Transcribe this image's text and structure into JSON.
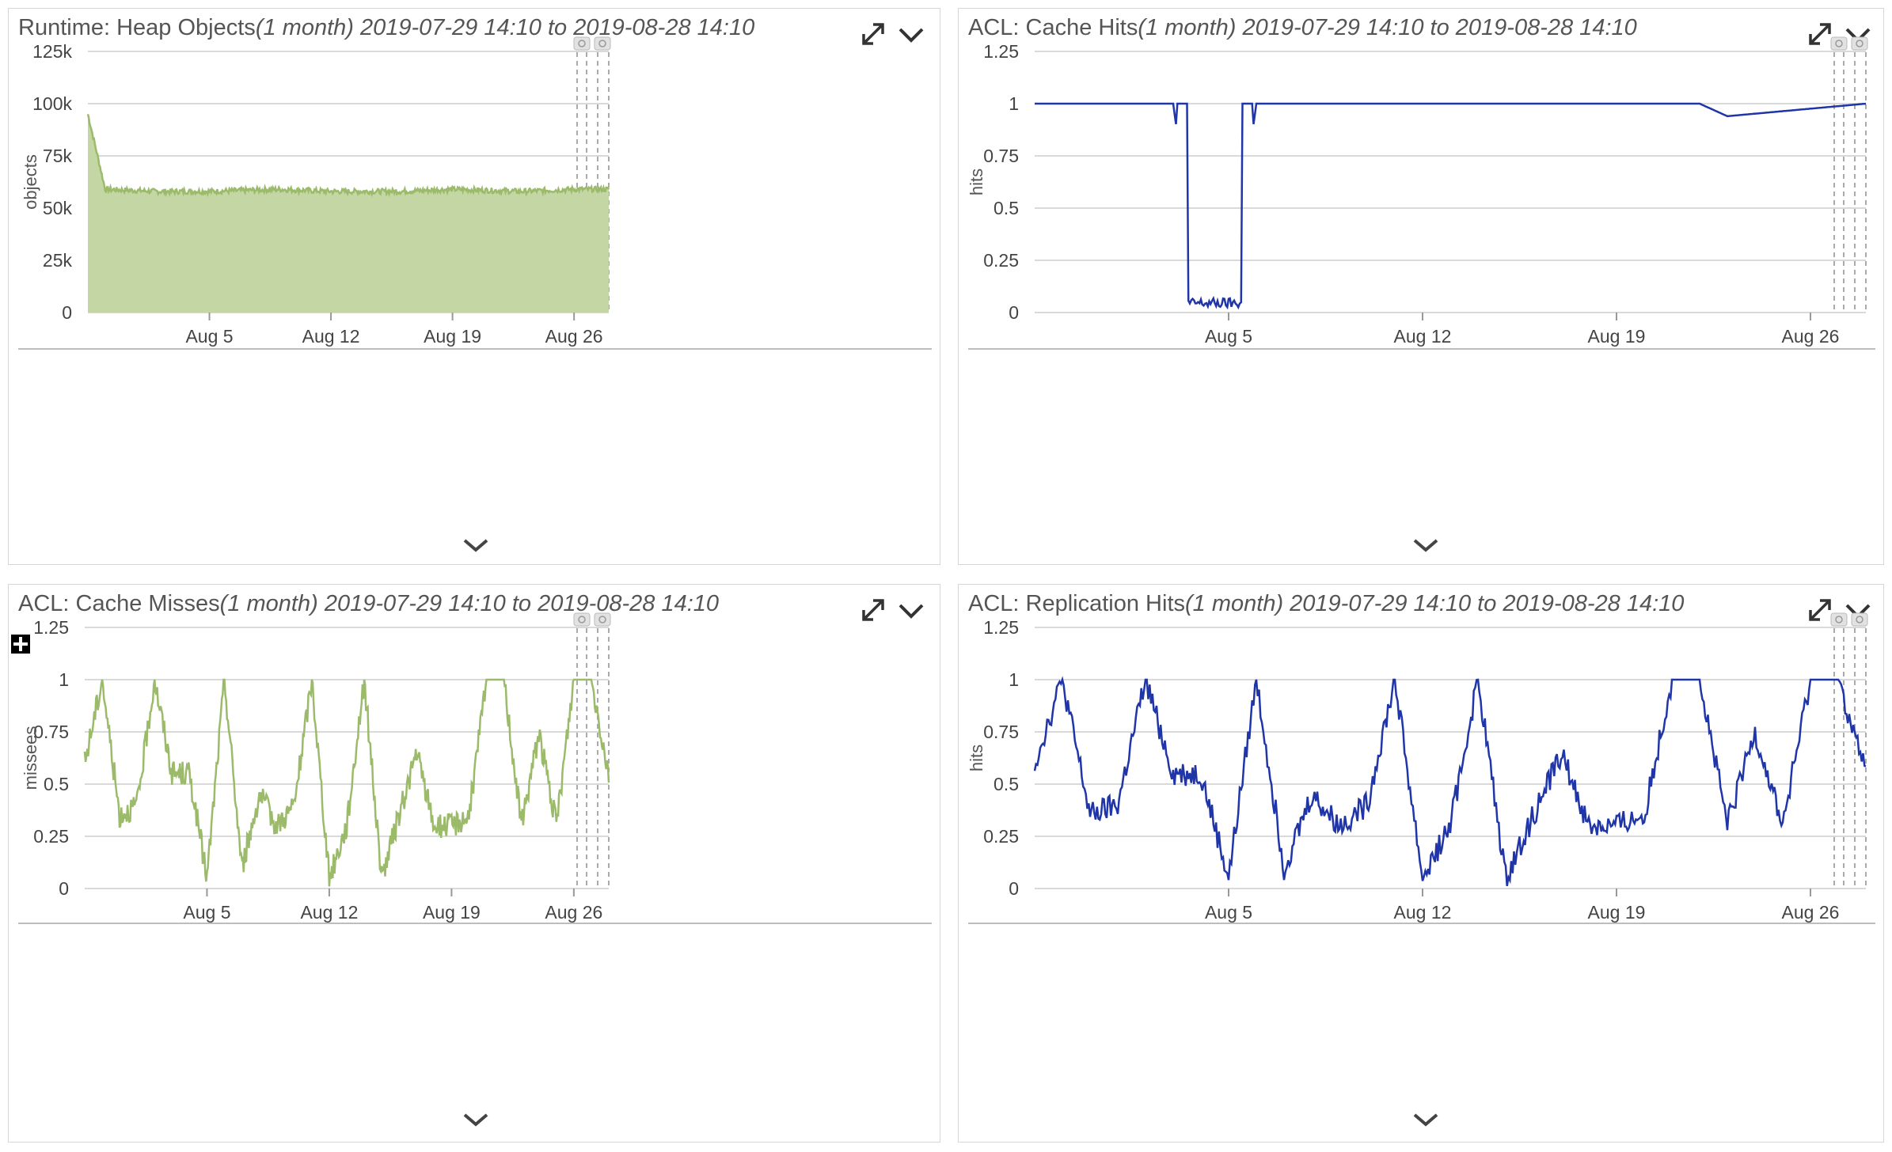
{
  "colors": {
    "green_line": "#9bbb6b",
    "green_fill": "#c3d6a4",
    "blue_line": "#1f35a8",
    "grid": "#d9d9d9",
    "axis_text": "#444444"
  },
  "icons": {
    "expand": "expand-icon",
    "menu": "chevron-down-icon",
    "collapse": "chevron-down-icon",
    "move": "move-icon",
    "annotations": "comment-icon"
  },
  "x_ticks": [
    "Aug 5",
    "Aug 12",
    "Aug 19",
    "Aug 26"
  ],
  "panels": [
    {
      "title": "Runtime: Heap Objects",
      "range": "(1 month) 2019-07-29 14:10 to 2019-08-28 14:10"
    },
    {
      "title": "ACL: Cache Hits",
      "range": "(1 month) 2019-07-29 14:10 to 2019-08-28 14:10"
    },
    {
      "title": "ACL: Cache Misses",
      "range": "(1 month) 2019-07-29 14:10 to 2019-08-28 14:10"
    },
    {
      "title": "ACL: Replication Hits",
      "range": "(1 month) 2019-07-29 14:10 to 2019-08-28 14:10"
    }
  ],
  "chart_data": [
    {
      "type": "area",
      "title": "Runtime: Heap Objects",
      "ylabel": "objects",
      "ylim": [
        0,
        125000
      ],
      "y_ticks": [
        "0",
        "25k",
        "50k",
        "75k",
        "100k",
        "125k"
      ],
      "x_ticks": [
        "Aug 5",
        "Aug 12",
        "Aug 19",
        "Aug 26"
      ],
      "x_range": [
        "2019-07-29",
        "2019-08-28"
      ],
      "series": [
        {
          "x": [
            "2019-07-29",
            "2019-07-30",
            "2019-08-02",
            "2019-08-05",
            "2019-08-09",
            "2019-08-12",
            "2019-08-16",
            "2019-08-19",
            "2019-08-23",
            "2019-08-26",
            "2019-08-28"
          ],
          "values": [
            95000,
            59000,
            58000,
            58000,
            59000,
            58000,
            58000,
            59000,
            58000,
            59000,
            59000
          ]
        }
      ]
    },
    {
      "type": "line",
      "title": "ACL: Cache Hits",
      "ylabel": "hits",
      "ylim": [
        0,
        1.25
      ],
      "y_ticks": [
        "0",
        "0.25",
        "0.5",
        "0.75",
        "1",
        "1.25"
      ],
      "x_ticks": [
        "Aug 5",
        "Aug 12",
        "Aug 19",
        "Aug 26"
      ],
      "x_range": [
        "2019-07-29",
        "2019-08-28"
      ],
      "series": [
        {
          "x": [
            "2019-07-29",
            "2019-08-03",
            "2019-08-04",
            "2019-08-05",
            "2019-08-06",
            "2019-08-22",
            "2019-08-23",
            "2019-08-28"
          ],
          "values": [
            1,
            1,
            0.02,
            0.02,
            1,
            1,
            0.94,
            1
          ]
        }
      ]
    },
    {
      "type": "line",
      "title": "ACL: Cache Misses",
      "ylabel": "missees",
      "ylim": [
        0,
        1.25
      ],
      "y_ticks": [
        "0",
        "0.25",
        "0.5",
        "0.75",
        "1",
        "1.25"
      ],
      "x_ticks": [
        "Aug 5",
        "Aug 12",
        "Aug 19",
        "Aug 26"
      ],
      "x_range": [
        "2019-07-29",
        "2019-08-28"
      ],
      "series": [
        {
          "x": [
            "2019-07-29",
            "2019-07-30",
            "2019-07-31",
            "2019-08-01",
            "2019-08-02",
            "2019-08-03",
            "2019-08-04",
            "2019-08-05",
            "2019-08-06",
            "2019-08-07",
            "2019-08-08",
            "2019-08-09",
            "2019-08-10",
            "2019-08-11",
            "2019-08-12",
            "2019-08-13",
            "2019-08-14",
            "2019-08-15",
            "2019-08-16",
            "2019-08-17",
            "2019-08-18",
            "2019-08-19",
            "2019-08-20",
            "2019-08-21",
            "2019-08-22",
            "2019-08-23",
            "2019-08-24",
            "2019-08-25",
            "2019-08-26",
            "2019-08-27",
            "2019-08-28"
          ],
          "values": [
            0.6,
            1,
            0.35,
            0.4,
            1,
            0.55,
            0.55,
            0.05,
            1,
            0.1,
            0.45,
            0.3,
            0.4,
            1,
            0.05,
            0.3,
            1,
            0.05,
            0.35,
            0.65,
            0.3,
            0.3,
            0.35,
            1,
            1,
            0.3,
            0.75,
            0.3,
            1,
            1,
            0.55
          ]
        }
      ]
    },
    {
      "type": "line",
      "title": "ACL: Replication Hits",
      "ylabel": "hits",
      "ylim": [
        0,
        1.25
      ],
      "y_ticks": [
        "0",
        "0.25",
        "0.5",
        "0.75",
        "1",
        "1.25"
      ],
      "x_ticks": [
        "Aug 5",
        "Aug 12",
        "Aug 19",
        "Aug 26"
      ],
      "x_range": [
        "2019-07-29",
        "2019-08-28"
      ],
      "series": [
        {
          "x": [
            "2019-07-29",
            "2019-07-30",
            "2019-07-31",
            "2019-08-01",
            "2019-08-02",
            "2019-08-03",
            "2019-08-04",
            "2019-08-05",
            "2019-08-06",
            "2019-08-07",
            "2019-08-08",
            "2019-08-09",
            "2019-08-10",
            "2019-08-11",
            "2019-08-12",
            "2019-08-13",
            "2019-08-14",
            "2019-08-15",
            "2019-08-16",
            "2019-08-17",
            "2019-08-18",
            "2019-08-19",
            "2019-08-20",
            "2019-08-21",
            "2019-08-22",
            "2019-08-23",
            "2019-08-24",
            "2019-08-25",
            "2019-08-26",
            "2019-08-27",
            "2019-08-28"
          ],
          "values": [
            0.6,
            1,
            0.35,
            0.4,
            1,
            0.55,
            0.55,
            0.05,
            1,
            0.1,
            0.45,
            0.3,
            0.4,
            1,
            0.05,
            0.3,
            1,
            0.05,
            0.35,
            0.65,
            0.3,
            0.3,
            0.35,
            1,
            1,
            0.3,
            0.75,
            0.3,
            1,
            1,
            0.55
          ]
        }
      ]
    }
  ]
}
